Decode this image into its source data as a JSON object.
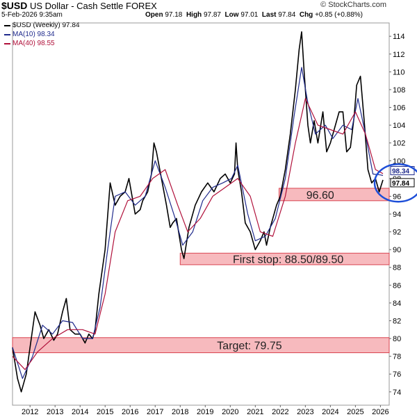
{
  "header": {
    "symbol": "$USD",
    "name": "US Dollar - Cash Settle",
    "exchange": "FOREX",
    "date": "5-Feb-2026 9:35am",
    "open_label": "Open",
    "open": "97.18",
    "high_label": "High",
    "high": "97.87",
    "low_label": "Low",
    "low": "97.01",
    "last_label": "Last",
    "last": "97.84",
    "chg_label": "Chg",
    "chg": "+0.85 (+0.88%)",
    "logo": "© StockCharts.com"
  },
  "legend": [
    {
      "label": "$USD (Weekly) 97.84",
      "color": "#000000"
    },
    {
      "label": "MA(10) 98.34",
      "color": "#1f2a8c"
    },
    {
      "label": "MA(40) 98.55",
      "color": "#b0103a"
    }
  ],
  "chart_data": {
    "type": "line",
    "title": "$USD US Dollar - Cash Settle FOREX (Weekly)",
    "xlabel": "",
    "ylabel": "",
    "xlim": [
      2011.3,
      2026.35
    ],
    "ylim": [
      72.5,
      115.5
    ],
    "x_ticks": [
      "2012",
      "2013",
      "2014",
      "2015",
      "2016",
      "2017",
      "2018",
      "2019",
      "2020",
      "2021",
      "2022",
      "2023",
      "2024",
      "2025",
      "2026"
    ],
    "y_ticks": [
      74,
      76,
      78,
      80,
      82,
      84,
      86,
      88,
      90,
      92,
      94,
      96,
      98,
      100,
      102,
      104,
      106,
      108,
      110,
      112,
      114
    ],
    "last_value_labels": [
      {
        "label": "98.34",
        "value": 98.34,
        "color": "#1f2a8c"
      },
      {
        "label": "97.84",
        "value": 97.84,
        "color": "#000000"
      }
    ],
    "zones": [
      {
        "label": "96.60",
        "y_low": 95.5,
        "y_high": 96.9,
        "x_start": 2021.95,
        "x_end": 2026.35,
        "color": "#f4a3a8"
      },
      {
        "label": "First stop: 88.50/89.50",
        "y_low": 88.3,
        "y_high": 89.6,
        "x_start": 2018.0,
        "x_end": 2026.35,
        "color": "#f4a3a8"
      },
      {
        "label": "Target: 79.75",
        "y_low": 78.4,
        "y_high": 80.1,
        "x_start": 2011.3,
        "x_end": 2026.35,
        "color": "#f4a3a8"
      }
    ],
    "annotation": {
      "type": "circle",
      "x": 2026.1,
      "y": 97.5,
      "color": "#1d4ed8"
    },
    "series": [
      {
        "name": "$USD (Weekly)",
        "color": "#000000",
        "x": [
          2011.3,
          2011.5,
          2011.65,
          2011.85,
          2012.05,
          2012.2,
          2012.4,
          2012.55,
          2012.75,
          2012.95,
          2013.1,
          2013.3,
          2013.45,
          2013.6,
          2013.8,
          2014.0,
          2014.2,
          2014.35,
          2014.5,
          2014.6,
          2014.75,
          2014.9,
          2015.0,
          2015.2,
          2015.4,
          2015.6,
          2015.8,
          2015.95,
          2016.2,
          2016.4,
          2016.5,
          2016.7,
          2016.85,
          2016.95,
          2017.05,
          2017.25,
          2017.45,
          2017.6,
          2017.7,
          2017.85,
          2018.05,
          2018.15,
          2018.35,
          2018.6,
          2018.85,
          2019.1,
          2019.35,
          2019.6,
          2019.8,
          2020.0,
          2020.17,
          2020.23,
          2020.3,
          2020.45,
          2020.6,
          2020.8,
          2021.0,
          2021.2,
          2021.35,
          2021.45,
          2021.6,
          2021.85,
          2022.0,
          2022.2,
          2022.4,
          2022.6,
          2022.75,
          2022.85,
          2022.95,
          2023.1,
          2023.2,
          2023.35,
          2023.5,
          2023.7,
          2023.85,
          2024.0,
          2024.15,
          2024.35,
          2024.5,
          2024.65,
          2024.8,
          2024.95,
          2025.05,
          2025.2,
          2025.35,
          2025.5,
          2025.65,
          2025.8,
          2025.95,
          2026.1
        ],
        "values": [
          79,
          75.5,
          74,
          76,
          80,
          83,
          81.5,
          80,
          81,
          79.8,
          80.5,
          83,
          84.5,
          81,
          80.5,
          80.5,
          79.5,
          80.5,
          80,
          81,
          85,
          88,
          90,
          97.5,
          95,
          96,
          96.5,
          98,
          94,
          94.5,
          95.5,
          96.5,
          98.5,
          102,
          101,
          98,
          95,
          92.5,
          93,
          93.5,
          90,
          89,
          92.5,
          95,
          96.5,
          97.5,
          96.5,
          98,
          98.5,
          97.5,
          98.5,
          102,
          99,
          96.5,
          93,
          92,
          90,
          91,
          92,
          90.5,
          92.5,
          95,
          96,
          99,
          103,
          108,
          112.5,
          114.5,
          110,
          104,
          102,
          104.5,
          102,
          105.5,
          101,
          102,
          103.5,
          105.5,
          105.5,
          101,
          101.5,
          105,
          108.5,
          109.5,
          104.5,
          99,
          97.5,
          98,
          96.5,
          97.84
        ]
      },
      {
        "name": "MA(10)",
        "color": "#1f2a8c",
        "x": [
          2011.3,
          2011.7,
          2012.1,
          2012.5,
          2012.9,
          2013.3,
          2013.7,
          2014.1,
          2014.5,
          2014.8,
          2015.1,
          2015.4,
          2015.8,
          2016.2,
          2016.6,
          2017.0,
          2017.4,
          2017.8,
          2018.1,
          2018.5,
          2018.9,
          2019.3,
          2019.7,
          2020.05,
          2020.3,
          2020.7,
          2021.0,
          2021.4,
          2021.8,
          2022.2,
          2022.55,
          2022.85,
          2023.1,
          2023.4,
          2023.8,
          2024.1,
          2024.5,
          2024.85,
          2025.1,
          2025.4,
          2025.7,
          2026.0,
          2026.1
        ],
        "values": [
          79,
          75.5,
          78,
          81.5,
          80.5,
          82,
          81.8,
          80,
          80,
          83.5,
          90,
          96,
          96.5,
          95,
          96,
          100,
          97,
          93.5,
          90.5,
          92,
          95.5,
          97,
          97.5,
          98,
          99.5,
          94,
          91,
          91.5,
          93.5,
          98,
          105,
          110.5,
          106.5,
          103,
          104,
          102.5,
          104,
          103.5,
          107,
          103,
          98.5,
          98.4,
          98.34
        ]
      },
      {
        "name": "MA(40)",
        "color": "#b0103a",
        "x": [
          2011.3,
          2011.8,
          2012.3,
          2012.9,
          2013.5,
          2014.1,
          2014.6,
          2015.0,
          2015.4,
          2015.9,
          2016.4,
          2016.9,
          2017.4,
          2017.9,
          2018.3,
          2018.8,
          2019.3,
          2019.8,
          2020.3,
          2020.8,
          2021.2,
          2021.7,
          2022.2,
          2022.6,
          2023.0,
          2023.5,
          2024.0,
          2024.5,
          2025.0,
          2025.4,
          2025.8,
          2026.1
        ],
        "values": [
          78,
          76.5,
          78.5,
          80,
          81,
          81,
          80.5,
          85,
          92,
          95.5,
          96,
          98,
          99,
          95,
          92,
          93.5,
          96,
          97,
          98,
          96,
          92,
          91.5,
          96,
          102,
          107,
          104,
          103.5,
          103,
          105.5,
          103,
          99,
          98.55
        ]
      }
    ]
  }
}
